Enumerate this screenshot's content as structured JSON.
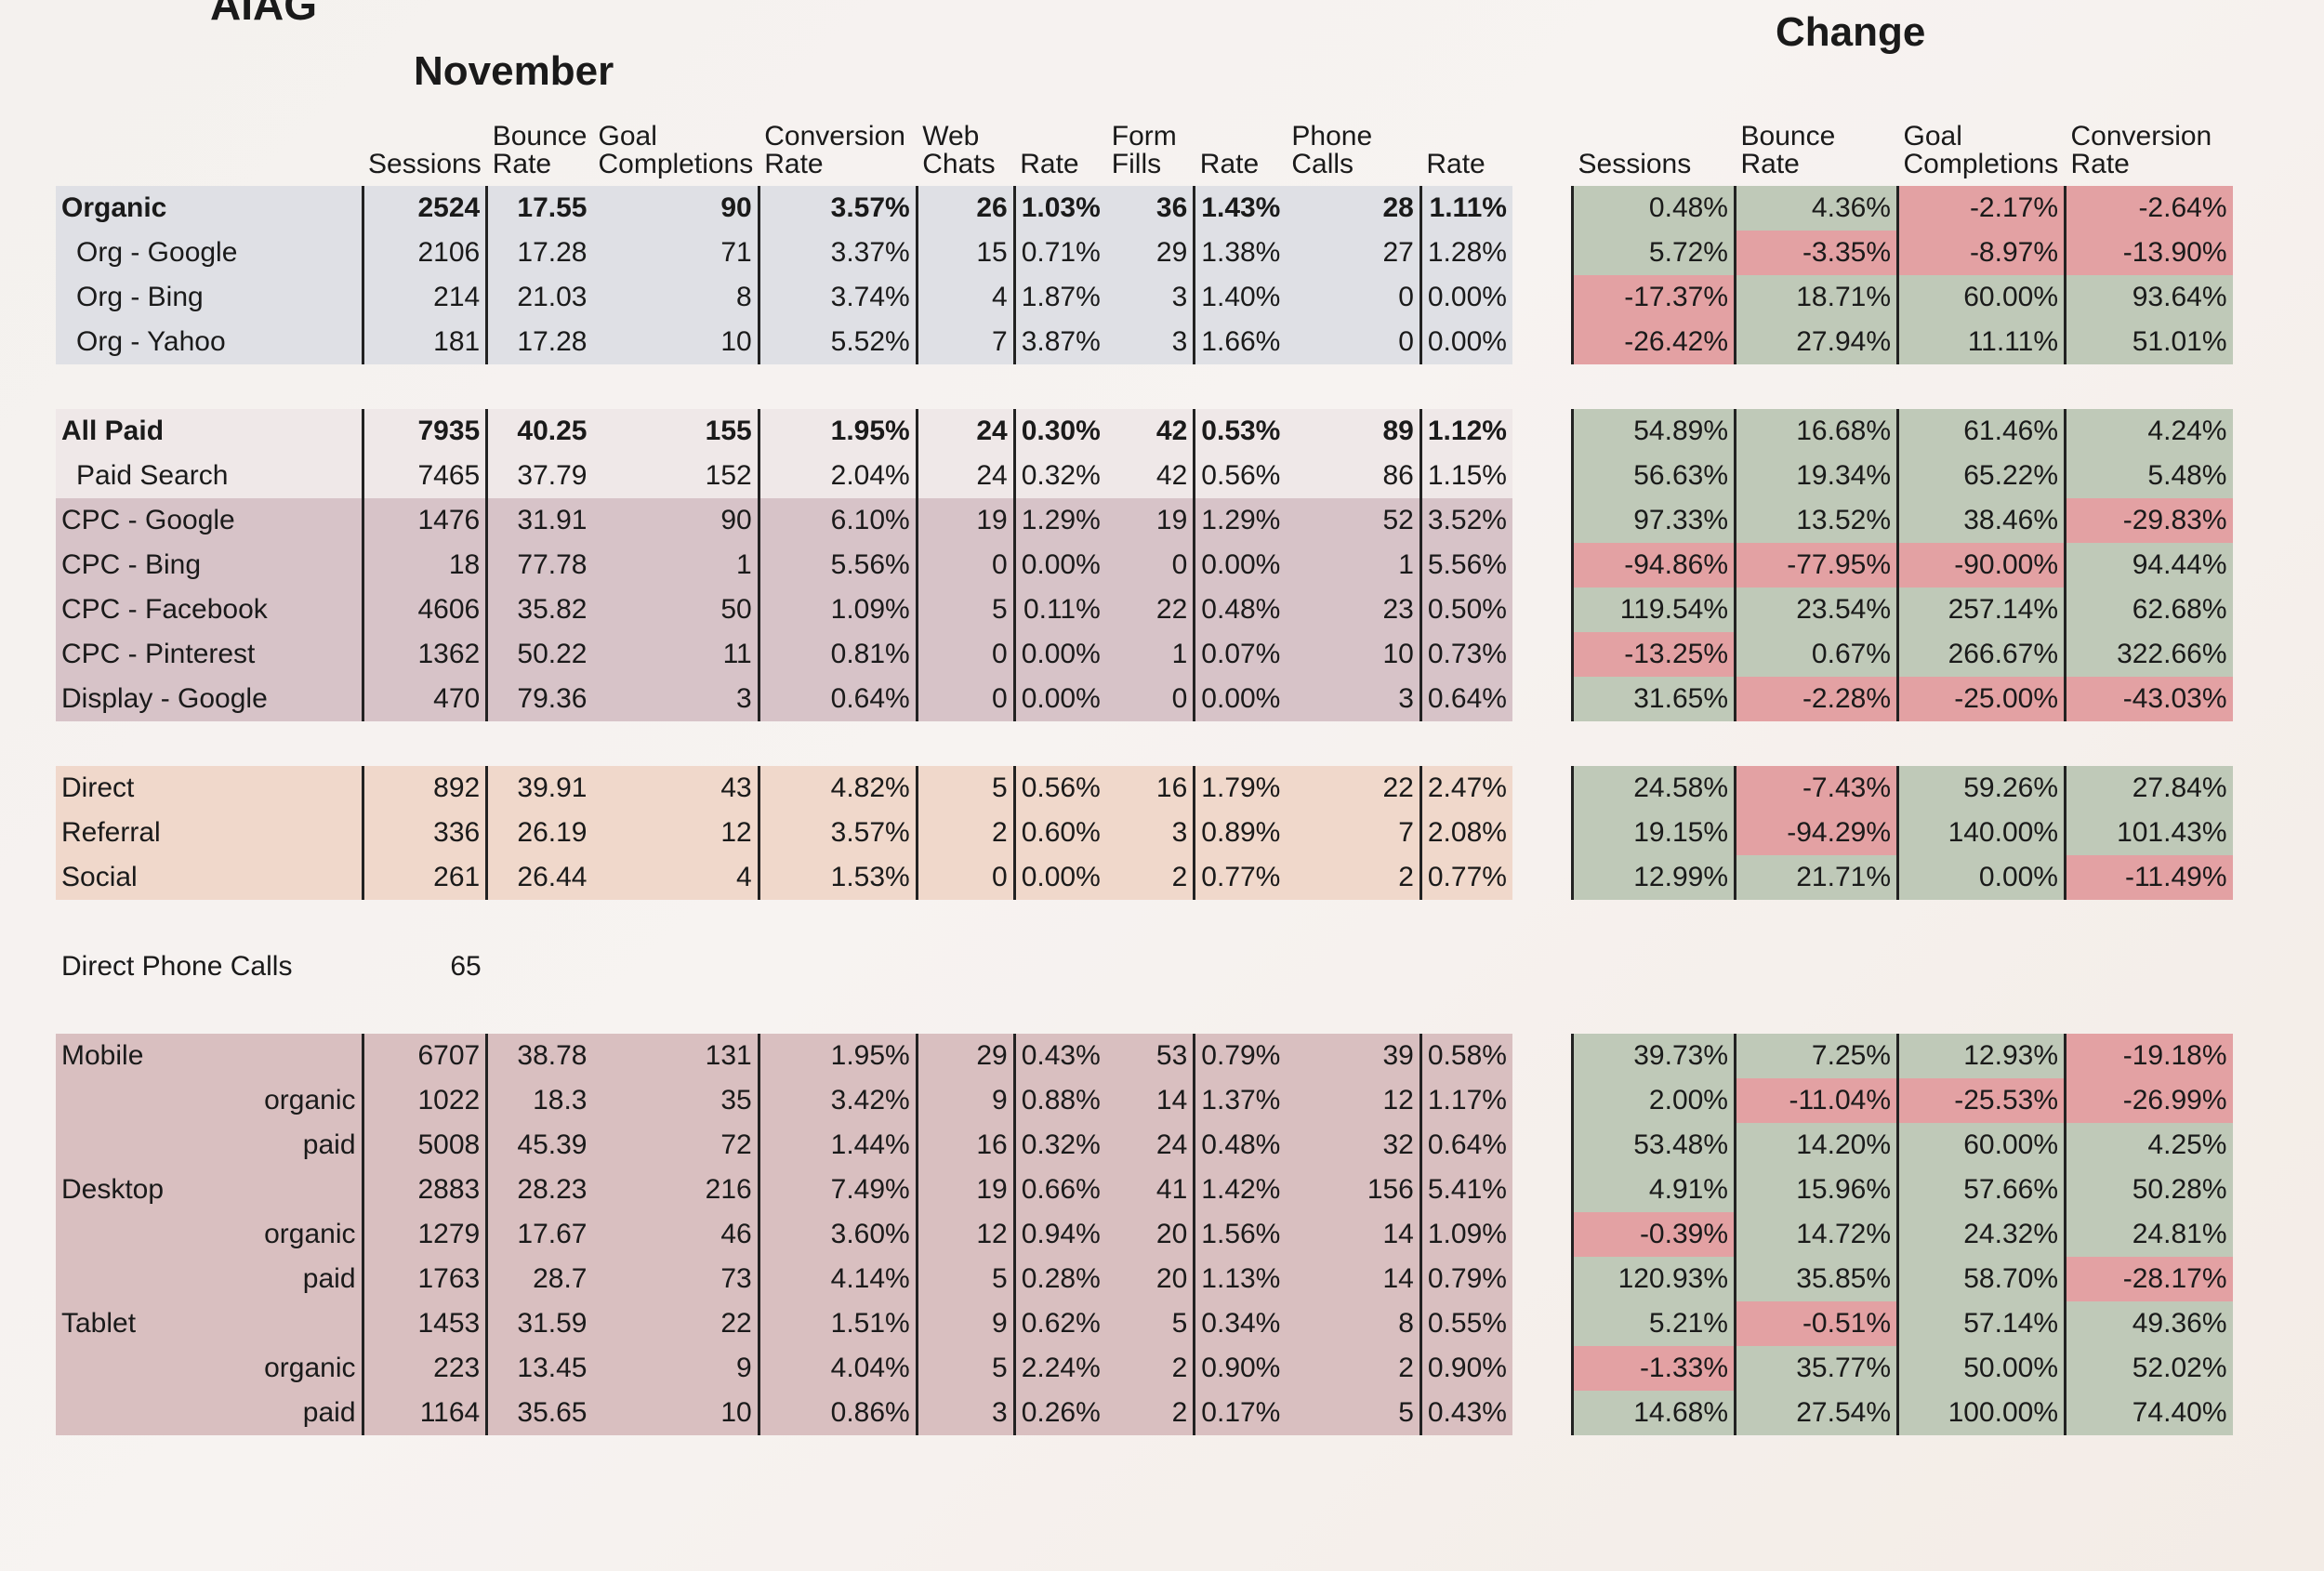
{
  "title": "AIAG",
  "november_heading": "November",
  "change_heading": "Change",
  "left_columns": [
    "",
    "Sessions",
    "Bounce Rate",
    "Goal Completions",
    "Conversion Rate",
    "Web Chats",
    "Rate",
    "Form Fills",
    "Rate",
    "Phone Calls",
    "Rate"
  ],
  "right_columns": [
    "Sessions",
    "Bounce Rate",
    "Goal Completions",
    "Conversion Rate"
  ],
  "rows": [
    {
      "label": "Organic",
      "sessions": "2524",
      "bounce": "17.55",
      "goals": "90",
      "conv": "3.57%",
      "chats": "26",
      "chat_rate": "1.03%",
      "forms": "36",
      "form_rate": "1.43%",
      "calls": "28",
      "call_rate": "1.11%",
      "bold": true,
      "ch_sessions": "0.48%",
      "ch_bounce": "4.36%",
      "ch_goals": "-2.17%",
      "ch_conv": "-2.64%"
    },
    {
      "label": "Org - Google",
      "sessions": "2106",
      "bounce": "17.28",
      "goals": "71",
      "conv": "3.37%",
      "chats": "15",
      "chat_rate": "0.71%",
      "forms": "29",
      "form_rate": "1.38%",
      "calls": "27",
      "call_rate": "1.28%",
      "ch_sessions": "5.72%",
      "ch_bounce": "-3.35%",
      "ch_goals": "-8.97%",
      "ch_conv": "-13.90%"
    },
    {
      "label": "Org - Bing",
      "sessions": "214",
      "bounce": "21.03",
      "goals": "8",
      "conv": "3.74%",
      "chats": "4",
      "chat_rate": "1.87%",
      "forms": "3",
      "form_rate": "1.40%",
      "calls": "0",
      "call_rate": "0.00%",
      "ch_sessions": "-17.37%",
      "ch_bounce": "18.71%",
      "ch_goals": "60.00%",
      "ch_conv": "93.64%"
    },
    {
      "label": "Org - Yahoo",
      "sessions": "181",
      "bounce": "17.28",
      "goals": "10",
      "conv": "5.52%",
      "chats": "7",
      "chat_rate": "3.87%",
      "forms": "3",
      "form_rate": "1.66%",
      "calls": "0",
      "call_rate": "0.00%",
      "ch_sessions": "-26.42%",
      "ch_bounce": "27.94%",
      "ch_goals": "11.11%",
      "ch_conv": "51.01%"
    },
    {
      "label": "All Paid",
      "sessions": "7935",
      "bounce": "40.25",
      "goals": "155",
      "conv": "1.95%",
      "chats": "24",
      "chat_rate": "0.30%",
      "forms": "42",
      "form_rate": "0.53%",
      "calls": "89",
      "call_rate": "1.12%",
      "bold": true,
      "ch_sessions": "54.89%",
      "ch_bounce": "16.68%",
      "ch_goals": "61.46%",
      "ch_conv": "4.24%"
    },
    {
      "label": "Paid Search",
      "sessions": "7465",
      "bounce": "37.79",
      "goals": "152",
      "conv": "2.04%",
      "chats": "24",
      "chat_rate": "0.32%",
      "forms": "42",
      "form_rate": "0.56%",
      "calls": "86",
      "call_rate": "1.15%",
      "ch_sessions": "56.63%",
      "ch_bounce": "19.34%",
      "ch_goals": "65.22%",
      "ch_conv": "5.48%"
    },
    {
      "label": "CPC - Google",
      "sessions": "1476",
      "bounce": "31.91",
      "goals": "90",
      "conv": "6.10%",
      "chats": "19",
      "chat_rate": "1.29%",
      "forms": "19",
      "form_rate": "1.29%",
      "calls": "52",
      "call_rate": "3.52%",
      "ch_sessions": "97.33%",
      "ch_bounce": "13.52%",
      "ch_goals": "38.46%",
      "ch_conv": "-29.83%"
    },
    {
      "label": "CPC - Bing",
      "sessions": "18",
      "bounce": "77.78",
      "goals": "1",
      "conv": "5.56%",
      "chats": "0",
      "chat_rate": "0.00%",
      "forms": "0",
      "form_rate": "0.00%",
      "calls": "1",
      "call_rate": "5.56%",
      "ch_sessions": "-94.86%",
      "ch_bounce": "-77.95%",
      "ch_goals": "-90.00%",
      "ch_conv": "94.44%"
    },
    {
      "label": "CPC - Facebook",
      "sessions": "4606",
      "bounce": "35.82",
      "goals": "50",
      "conv": "1.09%",
      "chats": "5",
      "chat_rate": "0.11%",
      "forms": "22",
      "form_rate": "0.48%",
      "calls": "23",
      "call_rate": "0.50%",
      "ch_sessions": "119.54%",
      "ch_bounce": "23.54%",
      "ch_goals": "257.14%",
      "ch_conv": "62.68%"
    },
    {
      "label": "CPC - Pinterest",
      "sessions": "1362",
      "bounce": "50.22",
      "goals": "11",
      "conv": "0.81%",
      "chats": "0",
      "chat_rate": "0.00%",
      "forms": "1",
      "form_rate": "0.07%",
      "calls": "10",
      "call_rate": "0.73%",
      "ch_sessions": "-13.25%",
      "ch_bounce": "0.67%",
      "ch_goals": "266.67%",
      "ch_conv": "322.66%"
    },
    {
      "label": "Display - Google",
      "sessions": "470",
      "bounce": "79.36",
      "goals": "3",
      "conv": "0.64%",
      "chats": "0",
      "chat_rate": "0.00%",
      "forms": "0",
      "form_rate": "0.00%",
      "calls": "3",
      "call_rate": "0.64%",
      "ch_sessions": "31.65%",
      "ch_bounce": "-2.28%",
      "ch_goals": "-25.00%",
      "ch_conv": "-43.03%"
    },
    {
      "label": "Direct",
      "sessions": "892",
      "bounce": "39.91",
      "goals": "43",
      "conv": "4.82%",
      "chats": "5",
      "chat_rate": "0.56%",
      "forms": "16",
      "form_rate": "1.79%",
      "calls": "22",
      "call_rate": "2.47%",
      "ch_sessions": "24.58%",
      "ch_bounce": "-7.43%",
      "ch_goals": "59.26%",
      "ch_conv": "27.84%"
    },
    {
      "label": "Referral",
      "sessions": "336",
      "bounce": "26.19",
      "goals": "12",
      "conv": "3.57%",
      "chats": "2",
      "chat_rate": "0.60%",
      "forms": "3",
      "form_rate": "0.89%",
      "calls": "7",
      "call_rate": "2.08%",
      "ch_sessions": "19.15%",
      "ch_bounce": "-94.29%",
      "ch_goals": "140.00%",
      "ch_conv": "101.43%"
    },
    {
      "label": "Social",
      "sessions": "261",
      "bounce": "26.44",
      "goals": "4",
      "conv": "1.53%",
      "chats": "0",
      "chat_rate": "0.00%",
      "forms": "2",
      "form_rate": "0.77%",
      "calls": "2",
      "call_rate": "0.77%",
      "ch_sessions": "12.99%",
      "ch_bounce": "21.71%",
      "ch_goals": "0.00%",
      "ch_conv": "-11.49%"
    },
    {
      "label": "Direct Phone Calls",
      "sessions": "65"
    },
    {
      "label": "Mobile",
      "sessions": "6707",
      "bounce": "38.78",
      "goals": "131",
      "conv": "1.95%",
      "chats": "29",
      "chat_rate": "0.43%",
      "forms": "53",
      "form_rate": "0.79%",
      "calls": "39",
      "call_rate": "0.58%",
      "ch_sessions": "39.73%",
      "ch_bounce": "7.25%",
      "ch_goals": "12.93%",
      "ch_conv": "-19.18%"
    },
    {
      "label": "organic",
      "sessions": "1022",
      "bounce": "18.3",
      "goals": "35",
      "conv": "3.42%",
      "chats": "9",
      "chat_rate": "0.88%",
      "forms": "14",
      "form_rate": "1.37%",
      "calls": "12",
      "call_rate": "1.17%",
      "ch_sessions": "2.00%",
      "ch_bounce": "-11.04%",
      "ch_goals": "-25.53%",
      "ch_conv": "-26.99%"
    },
    {
      "label": "paid",
      "sessions": "5008",
      "bounce": "45.39",
      "goals": "72",
      "conv": "1.44%",
      "chats": "16",
      "chat_rate": "0.32%",
      "forms": "24",
      "form_rate": "0.48%",
      "calls": "32",
      "call_rate": "0.64%",
      "ch_sessions": "53.48%",
      "ch_bounce": "14.20%",
      "ch_goals": "60.00%",
      "ch_conv": "4.25%"
    },
    {
      "label": "Desktop",
      "sessions": "2883",
      "bounce": "28.23",
      "goals": "216",
      "conv": "7.49%",
      "chats": "19",
      "chat_rate": "0.66%",
      "forms": "41",
      "form_rate": "1.42%",
      "calls": "156",
      "call_rate": "5.41%",
      "ch_sessions": "4.91%",
      "ch_bounce": "15.96%",
      "ch_goals": "57.66%",
      "ch_conv": "50.28%"
    },
    {
      "label": "organic",
      "sessions": "1279",
      "bounce": "17.67",
      "goals": "46",
      "conv": "3.60%",
      "chats": "12",
      "chat_rate": "0.94%",
      "forms": "20",
      "form_rate": "1.56%",
      "calls": "14",
      "call_rate": "1.09%",
      "ch_sessions": "-0.39%",
      "ch_bounce": "14.72%",
      "ch_goals": "24.32%",
      "ch_conv": "24.81%"
    },
    {
      "label": "paid",
      "sessions": "1763",
      "bounce": "28.7",
      "goals": "73",
      "conv": "4.14%",
      "chats": "5",
      "chat_rate": "0.28%",
      "forms": "20",
      "form_rate": "1.13%",
      "calls": "14",
      "call_rate": "0.79%",
      "ch_sessions": "120.93%",
      "ch_bounce": "35.85%",
      "ch_goals": "58.70%",
      "ch_conv": "-28.17%"
    },
    {
      "label": "Tablet",
      "sessions": "1453",
      "bounce": "31.59",
      "goals": "22",
      "conv": "1.51%",
      "chats": "9",
      "chat_rate": "0.62%",
      "forms": "5",
      "form_rate": "0.34%",
      "calls": "8",
      "call_rate": "0.55%",
      "ch_sessions": "5.21%",
      "ch_bounce": "-0.51%",
      "ch_goals": "57.14%",
      "ch_conv": "49.36%"
    },
    {
      "label": "organic",
      "sessions": "223",
      "bounce": "13.45",
      "goals": "9",
      "conv": "4.04%",
      "chats": "5",
      "chat_rate": "2.24%",
      "forms": "2",
      "form_rate": "0.90%",
      "calls": "2",
      "call_rate": "0.90%",
      "ch_sessions": "-1.33%",
      "ch_bounce": "35.77%",
      "ch_goals": "50.00%",
      "ch_conv": "52.02%"
    },
    {
      "label": "paid",
      "sessions": "1164",
      "bounce": "35.65",
      "goals": "10",
      "conv": "0.86%",
      "chats": "3",
      "chat_rate": "0.26%",
      "forms": "2",
      "form_rate": "0.17%",
      "calls": "5",
      "call_rate": "0.43%",
      "ch_sessions": "14.68%",
      "ch_bounce": "27.54%",
      "ch_goals": "100.00%",
      "ch_conv": "74.40%"
    }
  ],
  "colors": {
    "positive": "#bfc9b8",
    "negative": "#e3a1a3",
    "organic_band": "#dfe0e5",
    "paid_band": "#d7c3c8",
    "other_band": "#f0d8cb",
    "device_band": "#d9bfc0"
  }
}
